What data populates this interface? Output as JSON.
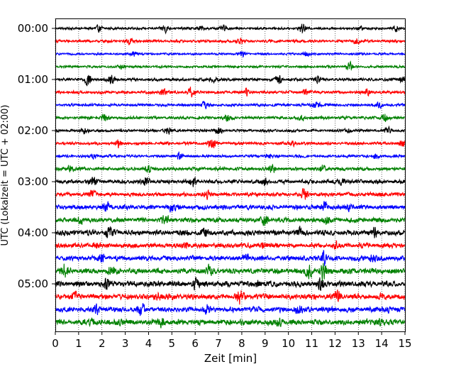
{
  "chart_data": {
    "type": "line",
    "title": "",
    "xlabel": "Zeit  [min]",
    "ylabel": "UTC (Lokalzeit = UTC + 02:00)",
    "xlim": [
      0,
      15
    ],
    "x_ticks": [
      "0",
      "1",
      "2",
      "3",
      "4",
      "5",
      "6",
      "7",
      "8",
      "9",
      "10",
      "11",
      "12",
      "13",
      "14",
      "15"
    ],
    "y_ticks": [
      "00:00",
      "01:00",
      "02:00",
      "03:00",
      "04:00",
      "05:00"
    ],
    "grid": "vertical dotted",
    "trace_interval_min": 15,
    "colors": [
      "#000000",
      "#ff0000",
      "#0000ff",
      "#008000"
    ],
    "traces": [
      {
        "start": "00:00",
        "color": "#000000",
        "noise": 0.18,
        "bursts": [
          [
            1.9,
            0.55
          ],
          [
            4.7,
            0.6
          ],
          [
            6.2,
            0.45
          ],
          [
            7.2,
            0.5
          ],
          [
            10.6,
            0.55
          ],
          [
            13.1,
            0.4
          ],
          [
            14.6,
            0.45
          ]
        ]
      },
      {
        "start": "00:15",
        "color": "#ff0000",
        "noise": 0.2,
        "bursts": [
          [
            3.2,
            0.45
          ],
          [
            7.9,
            0.65
          ],
          [
            12.9,
            0.55
          ]
        ]
      },
      {
        "start": "00:30",
        "color": "#0000ff",
        "noise": 0.16,
        "bursts": [
          [
            3.4,
            0.5
          ],
          [
            8.0,
            0.35
          ],
          [
            10.8,
            0.4
          ]
        ]
      },
      {
        "start": "00:45",
        "color": "#008000",
        "noise": 0.18,
        "bursts": [
          [
            2.9,
            0.35
          ],
          [
            12.6,
            0.6
          ]
        ]
      },
      {
        "start": "01:00",
        "color": "#000000",
        "noise": 0.22,
        "bursts": [
          [
            1.4,
            1.0
          ],
          [
            2.4,
            0.6
          ],
          [
            6.8,
            0.5
          ],
          [
            9.6,
            0.7
          ],
          [
            11.3,
            0.6
          ],
          [
            14.9,
            0.5
          ]
        ]
      },
      {
        "start": "01:15",
        "color": "#ff0000",
        "noise": 0.22,
        "bursts": [
          [
            4.6,
            0.7
          ],
          [
            5.8,
            0.6
          ],
          [
            8.2,
            0.5
          ],
          [
            10.7,
            0.55
          ],
          [
            13.4,
            0.45
          ]
        ]
      },
      {
        "start": "01:30",
        "color": "#0000ff",
        "noise": 0.2,
        "bursts": [
          [
            6.4,
            0.5
          ],
          [
            11.2,
            0.8
          ],
          [
            13.9,
            0.4
          ]
        ]
      },
      {
        "start": "01:45",
        "color": "#008000",
        "noise": 0.22,
        "bursts": [
          [
            2.1,
            0.55
          ],
          [
            7.4,
            0.5
          ],
          [
            10.6,
            0.4
          ],
          [
            14.1,
            0.7
          ]
        ]
      },
      {
        "start": "02:00",
        "color": "#000000",
        "noise": 0.2,
        "bursts": [
          [
            1.3,
            0.5
          ],
          [
            4.8,
            0.6
          ],
          [
            7.0,
            0.55
          ],
          [
            12.6,
            0.45
          ],
          [
            14.3,
            0.4
          ]
        ]
      },
      {
        "start": "02:15",
        "color": "#ff0000",
        "noise": 0.22,
        "bursts": [
          [
            2.7,
            0.5
          ],
          [
            6.7,
            0.7
          ],
          [
            10.2,
            0.5
          ],
          [
            14.9,
            0.4
          ]
        ]
      },
      {
        "start": "02:30",
        "color": "#0000ff",
        "noise": 0.2,
        "bursts": [
          [
            1.6,
            0.45
          ],
          [
            5.3,
            0.5
          ],
          [
            9.1,
            0.45
          ],
          [
            13.8,
            0.4
          ]
        ]
      },
      {
        "start": "02:45",
        "color": "#008000",
        "noise": 0.26,
        "bursts": [
          [
            0.6,
            0.5
          ],
          [
            4.0,
            0.45
          ],
          [
            9.3,
            0.55
          ],
          [
            11.5,
            0.6
          ]
        ]
      },
      {
        "start": "03:00",
        "color": "#000000",
        "noise": 0.3,
        "bursts": [
          [
            1.6,
            0.55
          ],
          [
            3.9,
            0.5
          ],
          [
            5.9,
            0.6
          ],
          [
            9.0,
            0.5
          ],
          [
            12.3,
            0.5
          ]
        ]
      },
      {
        "start": "03:15",
        "color": "#ff0000",
        "noise": 0.28,
        "bursts": [
          [
            1.6,
            0.55
          ],
          [
            6.5,
            0.5
          ],
          [
            10.7,
            0.75
          ],
          [
            14.0,
            0.5
          ]
        ]
      },
      {
        "start": "03:30",
        "color": "#0000ff",
        "noise": 0.34,
        "bursts": [
          [
            2.2,
            0.6
          ],
          [
            5.0,
            0.65
          ],
          [
            11.6,
            0.9
          ],
          [
            12.6,
            0.6
          ]
        ]
      },
      {
        "start": "03:45",
        "color": "#008000",
        "noise": 0.36,
        "bursts": [
          [
            1.1,
            0.6
          ],
          [
            4.7,
            0.55
          ],
          [
            9.0,
            0.6
          ],
          [
            11.6,
            0.6
          ]
        ]
      },
      {
        "start": "04:00",
        "color": "#000000",
        "noise": 0.4,
        "bursts": [
          [
            2.3,
            0.55
          ],
          [
            6.4,
            0.6
          ],
          [
            10.5,
            0.55
          ],
          [
            13.7,
            0.55
          ]
        ]
      },
      {
        "start": "04:15",
        "color": "#ff0000",
        "noise": 0.36,
        "bursts": [
          [
            1.7,
            0.55
          ],
          [
            5.6,
            0.5
          ],
          [
            8.9,
            0.55
          ],
          [
            12.0,
            0.5
          ]
        ]
      },
      {
        "start": "04:30",
        "color": "#0000ff",
        "noise": 0.38,
        "bursts": [
          [
            2.0,
            0.6
          ],
          [
            8.2,
            0.6
          ],
          [
            11.5,
            1.6
          ],
          [
            13.6,
            0.55
          ]
        ]
      },
      {
        "start": "04:45",
        "color": "#008000",
        "noise": 0.42,
        "bursts": [
          [
            0.4,
            1.0
          ],
          [
            2.4,
            0.6
          ],
          [
            6.6,
            0.55
          ],
          [
            10.9,
            0.9
          ],
          [
            11.5,
            1.3
          ]
        ]
      },
      {
        "start": "05:00",
        "color": "#000000",
        "noise": 0.42,
        "bursts": [
          [
            2.2,
            0.85
          ],
          [
            6.0,
            0.6
          ],
          [
            8.7,
            0.55
          ],
          [
            11.4,
            0.6
          ]
        ]
      },
      {
        "start": "05:15",
        "color": "#ff0000",
        "noise": 0.42,
        "bursts": [
          [
            0.8,
            0.6
          ],
          [
            4.4,
            0.55
          ],
          [
            7.9,
            0.8
          ],
          [
            12.1,
            0.6
          ]
        ]
      },
      {
        "start": "05:30",
        "color": "#0000ff",
        "noise": 0.4,
        "bursts": [
          [
            1.8,
            0.55
          ],
          [
            3.7,
            0.65
          ],
          [
            6.5,
            0.5
          ],
          [
            10.4,
            0.55
          ],
          [
            14.2,
            0.5
          ]
        ]
      },
      {
        "start": "05:45",
        "color": "#008000",
        "noise": 0.42,
        "bursts": [
          [
            1.6,
            0.55
          ],
          [
            2.7,
            0.55
          ],
          [
            4.6,
            0.7
          ],
          [
            9.6,
            0.55
          ],
          [
            13.9,
            0.55
          ]
        ]
      }
    ]
  }
}
